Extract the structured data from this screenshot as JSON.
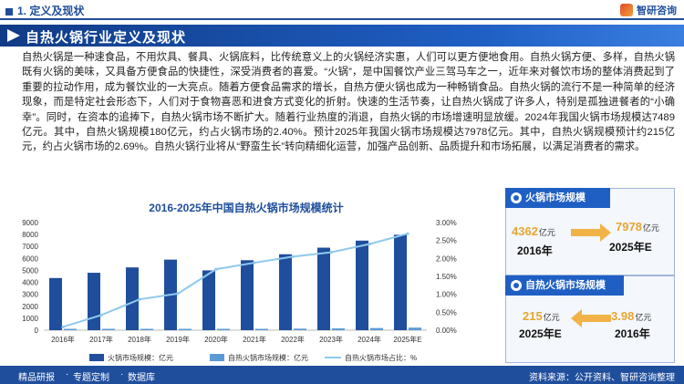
{
  "header": {
    "section": "1. 定义及现状",
    "brand": "智研咨询",
    "title": "自热火锅行业定义及现状"
  },
  "body_text": "自热火锅是一种速食品，不用炊具、餐具、火锅底料，比传统意义上的火锅经济实惠，人们可以更方便地食用。自热火锅方便、多样，自热火锅既有火锅的美味，又具备方便食品的快捷性，深受消费者的喜爱。“火锅”，是中国餐饮产业三驾马车之一，近年来对餐饮市场的整体消费起到了重要的拉动作用，成为餐饮业的一大亮点。随着方便食品需求的增长，自热方便火锅也成为一种畅销食品。自热火锅的流行不是一种简单的经济现象，而是特定社会形态下，人们对于食物喜恶和进食方式变化的折射。快速的生活节奏，让自热火锅成了许多人，特别是孤独进餐者的“小确幸”。同时，在资本的追捧下，自热火锅市场不断扩大。随着行业热度的消退，自热火锅的市场增速明显放缓。2024年我国火锅市场规模达7489亿元。其中，自热火锅规模180亿元，约占火锅市场的2.40%。预计2025年我国火锅市场规模达7978亿元。其中，自热火锅规模预计约215亿元，约占火锅市场的2.69%。自热火锅行业将从“野蛮生长”转向精细化运营，加强产品创新、品质提升和市场拓展，以满足消费者的需求。",
  "chart_data": {
    "type": "bar",
    "title": "2016-2025年中国自热火锅市场规模统计",
    "categories": [
      "2016年",
      "2017年",
      "2018年",
      "2019年",
      "2020年",
      "2021年",
      "2022年",
      "2023年",
      "2024年",
      "2025年E"
    ],
    "y_left_ticks": [
      "0",
      "1000",
      "2000",
      "3000",
      "4000",
      "5000",
      "6000",
      "7000",
      "8000",
      "9000"
    ],
    "y_right_ticks": [
      "0.00%",
      "0.50%",
      "1.00%",
      "1.50%",
      "2.00%",
      "2.50%",
      "3.00%"
    ],
    "ylim_left": [
      0,
      9000
    ],
    "ylim_right": [
      0,
      3.0
    ],
    "series": [
      {
        "name": "火锅市场规模：亿元",
        "type": "bar",
        "color": "#1f4e9c",
        "values": [
          4362,
          4800,
          5250,
          5900,
          5000,
          5850,
          6350,
          6900,
          7489,
          7978
        ]
      },
      {
        "name": "自热火锅市场规模：亿元",
        "type": "bar",
        "color": "#5b9bd5",
        "values": [
          3.98,
          20,
          45,
          60,
          85,
          110,
          130,
          150,
          180,
          215
        ]
      },
      {
        "name": "自热火锅市场占比：%",
        "type": "line",
        "color": "#8ec9ee",
        "values": [
          0.09,
          0.42,
          0.86,
          1.02,
          1.7,
          1.88,
          2.05,
          2.17,
          2.4,
          2.69
        ]
      }
    ],
    "grid": false,
    "legend": "bottom"
  },
  "panels": [
    {
      "heading": "火锅市场规模",
      "from_value": "4362",
      "from_unit": "亿元",
      "from_year": "2016年",
      "to_value": "7978",
      "to_unit": "亿元",
      "to_year": "2025年E"
    },
    {
      "heading": "自热火锅市场规模",
      "from_value": "215",
      "from_unit": "亿元",
      "from_year": "2025年E",
      "to_value": "3.98",
      "to_unit": "亿元",
      "to_year": "2016年"
    }
  ],
  "footer": {
    "item1": "精品研报",
    "item2": "专题定制",
    "item3": "数据库",
    "source": "资料来源：公开资料、智研咨询整理"
  },
  "colors": {
    "primary": "#1f4e9c",
    "accent": "#e7a531"
  }
}
